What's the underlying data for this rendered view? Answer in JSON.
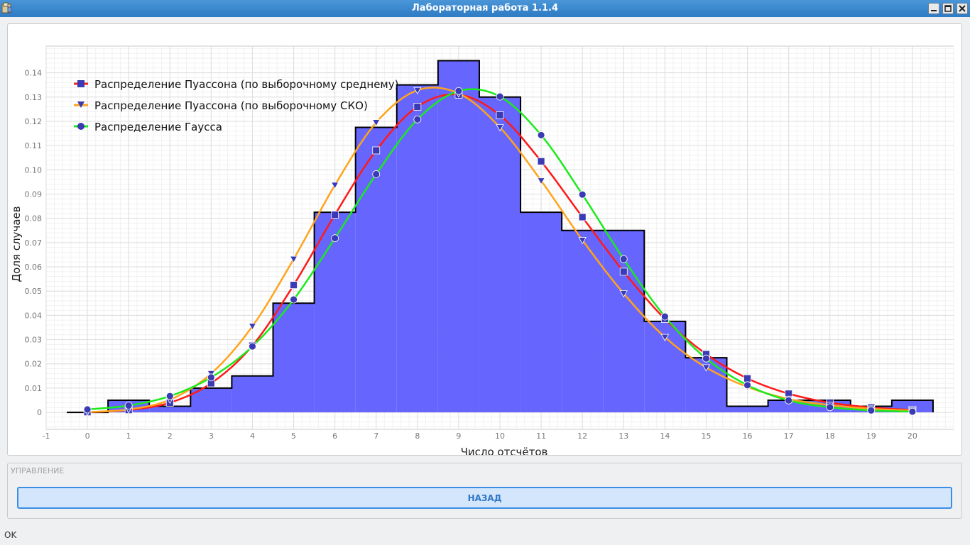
{
  "window": {
    "title": "Лабораторная работа 1.1.4"
  },
  "control": {
    "group_title": "УПРАВЛЕНИЕ",
    "back_label": "НАЗАД"
  },
  "status": {
    "text": "OK"
  },
  "colors": {
    "bars": "#6666ff",
    "poisson_mean": "#ff1a1a",
    "poisson_sko": "#ffa31a",
    "gauss": "#1aeb1a",
    "marker": "#3a3ab4"
  },
  "chart_data": {
    "type": "bar",
    "xlabel": "Число отсчётов",
    "ylabel": "Доля случаев",
    "xlim": [
      -1,
      21
    ],
    "ylim": [
      -0.007,
      0.151
    ],
    "xticks": [
      -1,
      0,
      1,
      2,
      3,
      4,
      5,
      6,
      7,
      8,
      9,
      10,
      11,
      12,
      13,
      14,
      15,
      16,
      17,
      18,
      19,
      20
    ],
    "yticks": [
      0,
      0.01,
      0.02,
      0.03,
      0.04,
      0.05,
      0.06,
      0.07,
      0.08,
      0.09,
      0.1,
      0.11,
      0.12,
      0.13,
      0.14
    ],
    "ytick_labels": [
      "0",
      "0.01",
      "0.02",
      "0.03",
      "0.04",
      "0.05",
      "0.06",
      "0.07",
      "0.08",
      "0.09",
      "0.10",
      "0.11",
      "0.12",
      "0.13",
      "0.14"
    ],
    "grid": true,
    "legend_position": "top-left",
    "histogram": {
      "x": [
        0,
        1,
        2,
        3,
        4,
        5,
        6,
        7,
        8,
        9,
        10,
        11,
        12,
        13,
        14,
        15,
        16,
        17,
        18,
        19,
        20
      ],
      "values": [
        0,
        0.005,
        0.0025,
        0.01,
        0.015,
        0.045,
        0.0825,
        0.1175,
        0.135,
        0.145,
        0.13,
        0.0825,
        0.075,
        0.075,
        0.0375,
        0.0225,
        0.0025,
        0.005,
        0.005,
        0.0025,
        0.005
      ]
    },
    "series": [
      {
        "name": "Распределение Пуассона (по выборочному среднему)",
        "marker": "square",
        "color": "#ff1a1a",
        "x": [
          0,
          1,
          2,
          3,
          4,
          5,
          6,
          7,
          8,
          9,
          10,
          11,
          12,
          13,
          14,
          15,
          16,
          17,
          18,
          19,
          20
        ],
        "values": [
          0.0001,
          0.001,
          0.004,
          0.012,
          0.0275,
          0.0525,
          0.0815,
          0.108,
          0.126,
          0.131,
          0.1225,
          0.1035,
          0.0805,
          0.058,
          0.0385,
          0.024,
          0.014,
          0.0077,
          0.004,
          0.002,
          0.001
        ]
      },
      {
        "name": "Распределение Пуассона (по выборочному СКО)",
        "marker": "triangle-down",
        "color": "#ffa31a",
        "x": [
          0,
          1,
          2,
          3,
          4,
          5,
          6,
          7,
          8,
          9,
          10,
          11,
          12,
          13,
          14,
          15,
          16,
          17,
          18,
          19,
          20
        ],
        "values": [
          0.0001,
          0.0012,
          0.0052,
          0.016,
          0.0355,
          0.0632,
          0.0937,
          0.1195,
          0.1328,
          0.1315,
          0.1175,
          0.0955,
          0.071,
          0.049,
          0.031,
          0.0185,
          0.0105,
          0.0055,
          0.003,
          0.0015,
          0.0007
        ]
      },
      {
        "name": "Распределение Гаусса",
        "marker": "circle",
        "color": "#1aeb1a",
        "x": [
          0,
          1,
          2,
          3,
          4,
          5,
          6,
          7,
          8,
          9,
          10,
          11,
          12,
          13,
          14,
          15,
          16,
          17,
          18,
          19,
          20
        ],
        "values": [
          0.0012,
          0.0028,
          0.0067,
          0.0144,
          0.0272,
          0.0465,
          0.0718,
          0.0982,
          0.1208,
          0.1325,
          0.1302,
          0.1143,
          0.0898,
          0.0632,
          0.0395,
          0.0222,
          0.0112,
          0.0049,
          0.0021,
          0.0008,
          0.0003
        ]
      }
    ]
  }
}
